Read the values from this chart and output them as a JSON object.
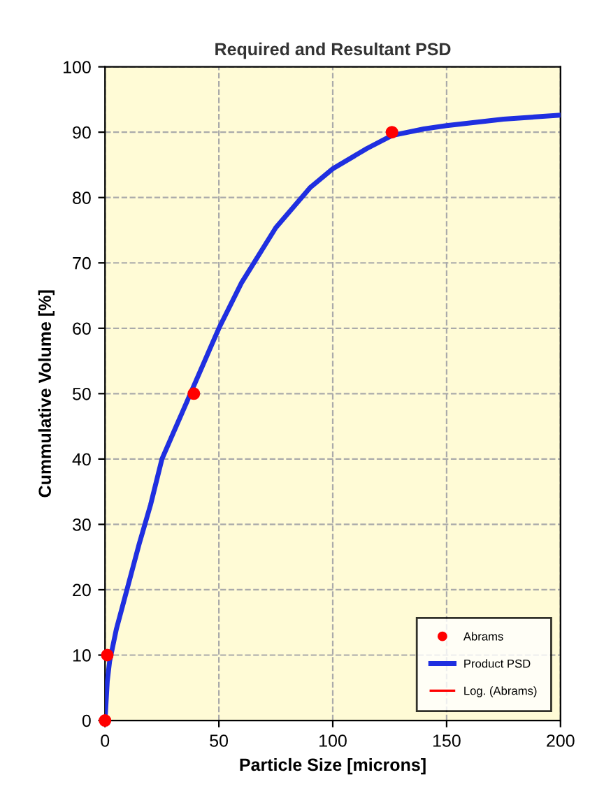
{
  "chart_data": {
    "type": "scatter",
    "title": "Required and Resultant PSD",
    "xlabel": "Particle Size [microns]",
    "ylabel": "Cummulative Volume [%]",
    "xlim": [
      0,
      200
    ],
    "xticks": [
      0,
      50,
      100,
      150,
      200
    ],
    "ylim": [
      0,
      100
    ],
    "yticks": [
      0,
      10,
      20,
      30,
      40,
      50,
      60,
      70,
      80,
      90,
      100
    ],
    "grid": true,
    "legend": "bottom right",
    "series": [
      {
        "name": "Abrams",
        "color": "#ff0000",
        "marker": "circle",
        "x": [
          0,
          1,
          39,
          126
        ],
        "values": [
          0,
          10,
          50,
          90
        ]
      },
      {
        "name": "Product PSD",
        "type": "line",
        "color": "#1f2fe0",
        "marker": "none",
        "x": [
          0,
          1,
          2,
          5,
          10,
          15,
          20,
          25,
          30,
          40,
          46,
          50,
          60,
          75,
          90,
          100,
          115,
          126,
          140,
          150,
          175,
          200
        ],
        "values": [
          0,
          6,
          9,
          14,
          20.5,
          27,
          33,
          40,
          44,
          52,
          56.8,
          60,
          67,
          75.4,
          81.5,
          84.4,
          87.5,
          89.5,
          90.5,
          91,
          92,
          92.6
        ]
      },
      {
        "name": "Log. (Abrams)",
        "type": "line",
        "color": "#ff0000",
        "marker": "none"
      }
    ]
  }
}
